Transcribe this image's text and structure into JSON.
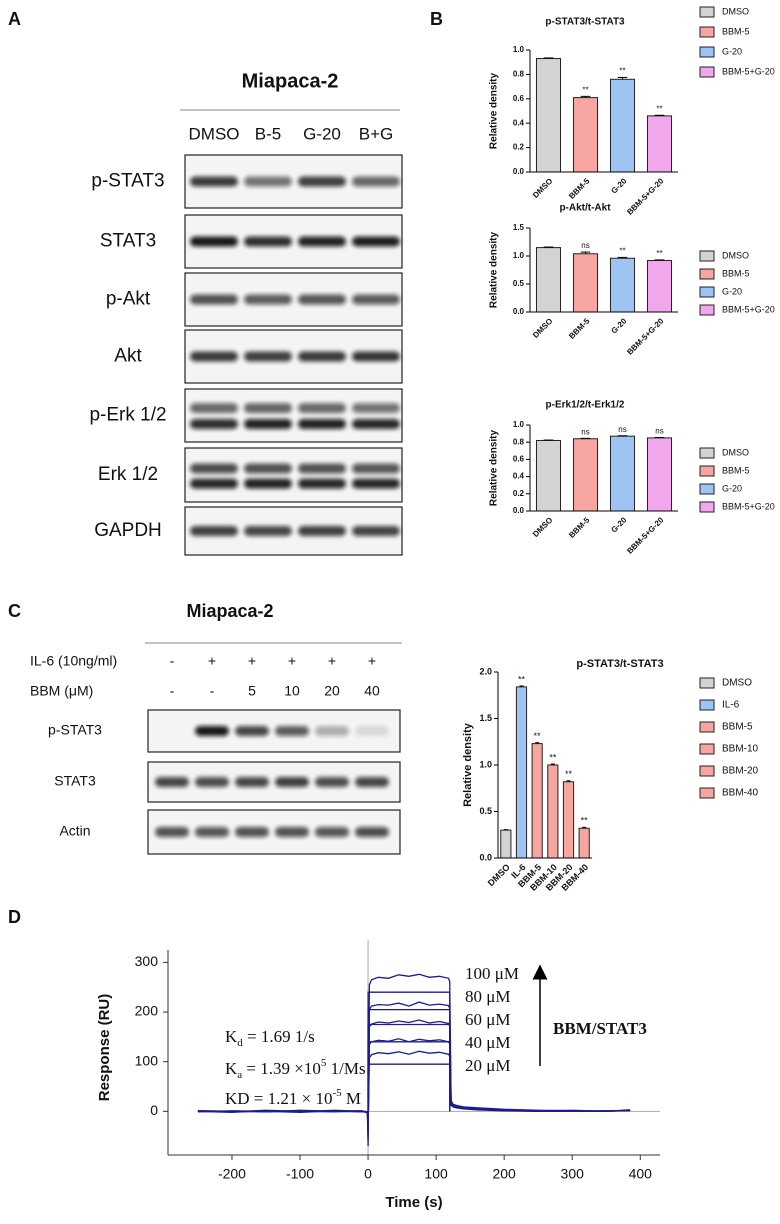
{
  "panels": [
    "A",
    "B",
    "C",
    "D"
  ],
  "blot_a": {
    "title": "Miapaca-2",
    "lanes": [
      "DMSO",
      "B-5",
      "G-20",
      "B+G"
    ],
    "rows": [
      "p-STAT3",
      "STAT3",
      "p-Akt",
      "Akt",
      "p-Erk 1/2",
      "Erk 1/2",
      "GAPDH"
    ]
  },
  "blot_c": {
    "title": "Miapaca-2",
    "treatments": [
      {
        "label": "IL-6 (10ng/ml)",
        "lanes": [
          "-",
          "+",
          "+",
          "+",
          "+",
          "+"
        ]
      },
      {
        "label": "BBM  (μM)",
        "lanes": [
          "-",
          "-",
          "5",
          "10",
          "20",
          "40"
        ]
      }
    ],
    "rows": [
      "p-STAT3",
      "STAT3",
      "Actin"
    ]
  },
  "chart_data": [
    {
      "type": "bar",
      "title": "p-STAT3/t-STAT3",
      "ylabel": "Relative density",
      "categories": [
        "DMSO",
        "BBM-5",
        "G-20",
        "BBM-5+G-20"
      ],
      "values": [
        0.93,
        0.61,
        0.76,
        0.46
      ],
      "errors": [
        0.005,
        0.01,
        0.015,
        0.005
      ],
      "annotations": [
        null,
        "**",
        "**",
        "**"
      ],
      "colors": [
        "#d3d3d3",
        "#f6a5a0",
        "#9dc4f2",
        "#f2a7ec"
      ],
      "ylim": [
        0,
        1
      ],
      "yticks": [
        {
          "value": 0,
          "label": "0.0"
        },
        0.2,
        0.4,
        0.6,
        0.8,
        {
          "value": 1,
          "label": "1.0"
        }
      ],
      "legend": "right"
    },
    {
      "type": "bar",
      "title": "p-Akt/t-Akt",
      "ylabel": "Relative density",
      "categories": [
        "DMSO",
        "BBM-5",
        "G-20",
        "BBM-5+G-20"
      ],
      "values": [
        1.15,
        1.04,
        0.96,
        0.92
      ],
      "errors": [
        0.01,
        0.03,
        0.015,
        0.01
      ],
      "annotations": [
        null,
        "ns",
        "**",
        "**"
      ],
      "colors": [
        "#d3d3d3",
        "#f6a5a0",
        "#9dc4f2",
        "#f2a7ec"
      ],
      "ylim": [
        0,
        1.5
      ],
      "yticks": [
        {
          "value": 0,
          "label": "0.0"
        },
        0.5,
        {
          "value": 1,
          "label": "1.0"
        },
        1.5
      ],
      "legend": "right"
    },
    {
      "type": "bar",
      "title": "p-Erk1/2/t-Erk1/2",
      "ylabel": "Relative density",
      "categories": [
        "DMSO",
        "BBM-5",
        "G-20",
        "BBM-5+G-20"
      ],
      "values": [
        0.82,
        0.84,
        0.87,
        0.85
      ],
      "errors": [
        0.005,
        0.005,
        0.005,
        0.005
      ],
      "annotations": [
        null,
        "ns",
        "ns",
        "ns"
      ],
      "colors": [
        "#d3d3d3",
        "#f6a5a0",
        "#9dc4f2",
        "#f2a7ec"
      ],
      "ylim": [
        0,
        1
      ],
      "yticks": [
        {
          "value": 0,
          "label": "0.0"
        },
        0.2,
        0.4,
        0.6,
        0.8,
        {
          "value": 1,
          "label": "1.0"
        }
      ],
      "legend": "right"
    },
    {
      "type": "bar",
      "title": "p-STAT3/t-STAT3",
      "ylabel": "Relative density",
      "categories": [
        "DMSO",
        "IL-6",
        "BBM-5",
        "BBM-10",
        "BBM-20",
        "BBM-40"
      ],
      "values": [
        0.3,
        1.84,
        1.23,
        1.0,
        0.82,
        0.32
      ],
      "errors": [
        0.005,
        0.01,
        0.01,
        0.01,
        0.01,
        0.01
      ],
      "annotations": [
        null,
        "**",
        "**",
        "**",
        "**",
        "**"
      ],
      "colors": [
        "#d3d3d3",
        "#9dc4f2",
        "#f6a5a0",
        "#f6a5a0",
        "#f6a5a0",
        "#f6a5a0"
      ],
      "ylim": [
        0,
        2
      ],
      "yticks": [
        {
          "value": 0,
          "label": "0.0"
        },
        0.5,
        {
          "value": 1,
          "label": "1.0"
        },
        1.5,
        {
          "value": 2,
          "label": "2.0"
        }
      ],
      "legend": "right"
    },
    {
      "type": "line",
      "xlabel": "Time (s)",
      "ylabel": "Response (RU)",
      "x": [
        -250,
        -200,
        -150,
        -100,
        -50,
        -10,
        -1,
        0,
        2,
        5,
        15,
        30,
        45,
        60,
        75,
        90,
        105,
        118,
        120,
        122,
        125,
        130,
        140,
        160,
        200,
        250,
        300,
        350,
        385
      ],
      "fit_x": [
        0,
        0,
        120,
        120
      ],
      "series": [
        {
          "name": "100 μM",
          "color": "#1c1c8c",
          "fit": [
            0,
            240,
            240,
            0
          ],
          "values": [
            0,
            -2,
            1,
            -1,
            2,
            0,
            -3,
            -70,
            255,
            265,
            270,
            268,
            275,
            272,
            276,
            270,
            272,
            268,
            262,
            22,
            14,
            12,
            9,
            7,
            4,
            2,
            1,
            0,
            3
          ]
        },
        {
          "name": "80 μM",
          "color": "#1c1c8c",
          "fit": [
            0,
            205,
            205,
            0
          ],
          "values": [
            1,
            0,
            -1,
            2,
            0,
            1,
            -2,
            -55,
            205,
            212,
            215,
            214,
            218,
            212,
            220,
            214,
            216,
            213,
            208,
            18,
            12,
            10,
            8,
            5,
            3,
            1,
            2,
            0,
            2
          ]
        },
        {
          "name": "60 μM",
          "color": "#1c1c8c",
          "fit": [
            0,
            175,
            175,
            0
          ],
          "values": [
            -1,
            1,
            0,
            -2,
            1,
            0,
            -2,
            -45,
            170,
            176,
            180,
            178,
            182,
            179,
            184,
            178,
            181,
            177,
            172,
            15,
            11,
            9,
            7,
            4,
            2,
            1,
            0,
            1,
            1
          ]
        },
        {
          "name": "40 μM",
          "color": "#1c1c8c",
          "fit": [
            0,
            140,
            140,
            0
          ],
          "values": [
            0,
            -1,
            2,
            0,
            -1,
            1,
            -1,
            -35,
            135,
            140,
            143,
            141,
            146,
            140,
            145,
            142,
            144,
            140,
            136,
            13,
            10,
            8,
            6,
            4,
            2,
            0,
            1,
            0,
            2
          ]
        },
        {
          "name": "20 μM",
          "color": "#1c1c8c",
          "fit": [
            0,
            95,
            95,
            0
          ],
          "values": [
            1,
            0,
            -1,
            1,
            0,
            -1,
            -1,
            -25,
            108,
            114,
            118,
            116,
            120,
            115,
            121,
            117,
            119,
            115,
            111,
            12,
            9,
            7,
            5,
            3,
            1,
            0,
            0,
            1,
            1
          ]
        }
      ],
      "annotations": [
        {
          "parts": [
            {
              "text": "K"
            },
            {
              "text": "d",
              "sub": true
            },
            {
              "text": " = 1.69 1/s"
            }
          ]
        },
        {
          "parts": [
            {
              "text": "K"
            },
            {
              "text": "a",
              "sub": true
            },
            {
              "text": " = 1.39 ×10"
            },
            {
              "text": "5",
              "sup": true
            },
            {
              "text": " 1/Ms"
            }
          ]
        },
        {
          "parts": [
            {
              "text": "KD = 1.21 × 10"
            },
            {
              "text": "-5",
              "sup": true
            },
            {
              "text": " M"
            }
          ]
        }
      ],
      "label": "BBM/STAT3",
      "xlim": [
        -294,
        429
      ],
      "ylim": [
        -88,
        325
      ],
      "xticks": [
        -200,
        -100,
        0,
        100,
        200,
        300,
        400
      ],
      "yticks": [
        0,
        100,
        200,
        300
      ]
    }
  ]
}
